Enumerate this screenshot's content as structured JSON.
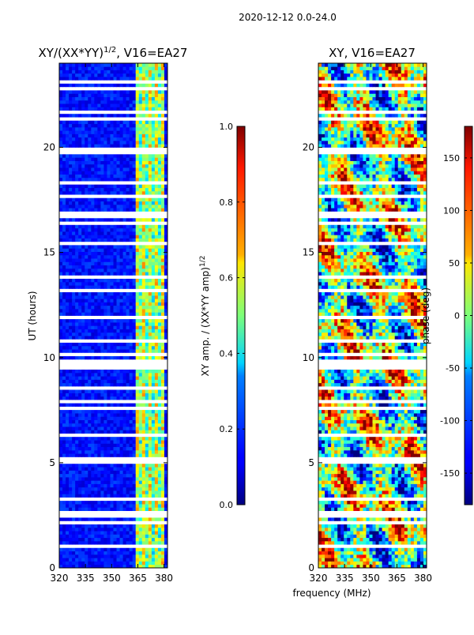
{
  "suptitle": "2020-12-12 0.0-24.0",
  "x_common_label": "frequency (MHz)",
  "chart_data": [
    {
      "type": "heatmap",
      "title_prefix": "XY/(XX*YY)",
      "title_sup": "1/2",
      "title_suffix": ", V16=EA27",
      "ylabel": "UT (hours)",
      "xlim": [
        320,
        382
      ],
      "ylim": [
        0,
        24
      ],
      "xticks": [
        320,
        335,
        350,
        365,
        380
      ],
      "yticks": [
        0,
        5,
        10,
        15,
        20
      ],
      "bright_band_MHz": [
        364,
        380
      ],
      "colorbar": {
        "label": "XY amp. / (XX*YY amp)",
        "label_sup": "1/2",
        "range": [
          0.0,
          1.0
        ],
        "ticks": [
          "0.0",
          "0.2",
          "0.4",
          "0.6",
          "0.8",
          "1.0"
        ]
      }
    },
    {
      "type": "heatmap",
      "title": "XY, V16=EA27",
      "xlabel": "frequency (MHz)",
      "xlim": [
        320,
        382
      ],
      "ylim": [
        0,
        24
      ],
      "xticks": [
        320,
        335,
        350,
        365,
        380
      ],
      "yticks": [
        0,
        5,
        10,
        15,
        20
      ],
      "colorbar": {
        "label": "phase (deg)",
        "range": [
          -180,
          180
        ],
        "ticks": [
          "-150",
          "-100",
          "-50",
          "0",
          "50",
          "100",
          "150"
        ]
      }
    }
  ],
  "colormap": "jet"
}
